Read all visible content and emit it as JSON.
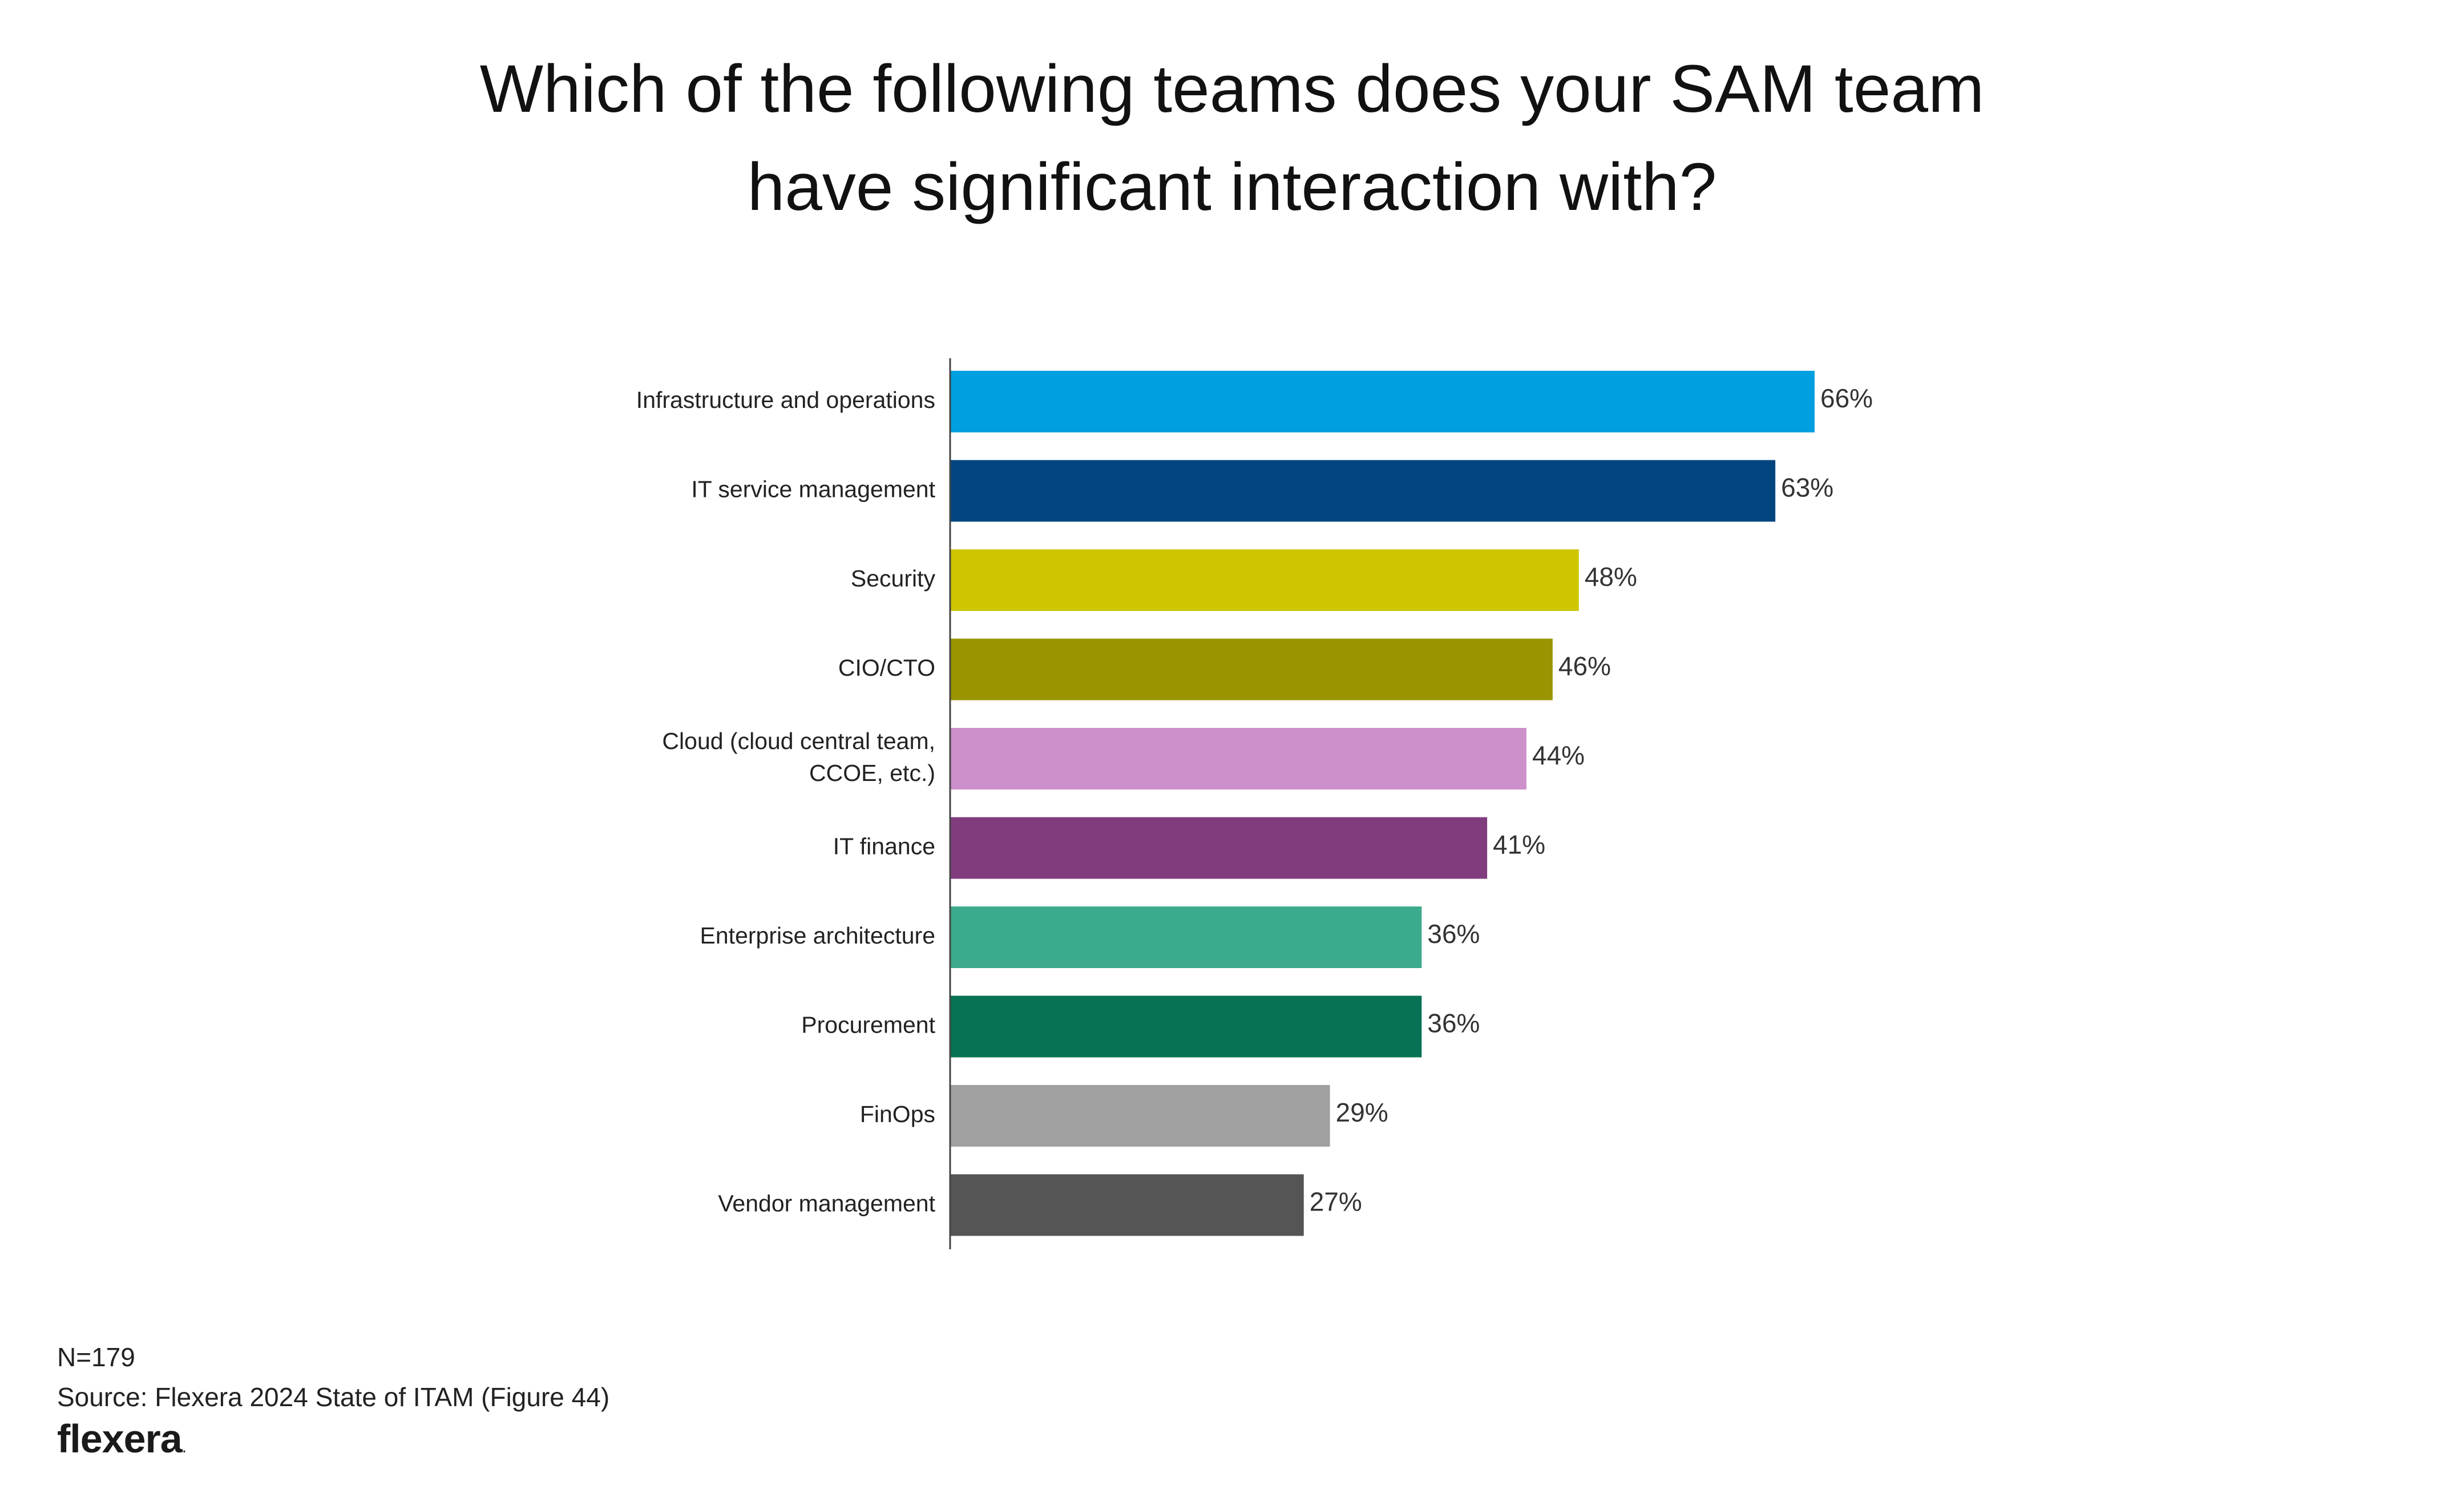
{
  "title_lines": [
    "Which of the following teams does your SAM team",
    "have significant interaction with?"
  ],
  "footer": {
    "n": "N=179",
    "source": "Source: Flexera 2024 State of ITAM (Figure 44)",
    "brand": "flexera",
    "brand_dot": "."
  },
  "chart_data": {
    "type": "bar",
    "orientation": "horizontal",
    "title": "Which of the following teams does your SAM team have significant interaction with?",
    "categories": [
      [
        "Infrastructure and operations"
      ],
      [
        "IT service management"
      ],
      [
        "Security"
      ],
      [
        "CIO/CTO"
      ],
      [
        "Cloud (cloud central team,",
        "CCOE, etc.)"
      ],
      [
        "IT finance"
      ],
      [
        "Enterprise architecture"
      ],
      [
        "Procurement"
      ],
      [
        "FinOps"
      ],
      [
        "Vendor management"
      ]
    ],
    "values": [
      66,
      63,
      48,
      46,
      44,
      41,
      36,
      36,
      29,
      27
    ],
    "value_labels": [
      "66%",
      "63%",
      "48%",
      "46%",
      "44%",
      "41%",
      "36%",
      "36%",
      "29%",
      "27%"
    ],
    "colors": [
      "#009fdf",
      "#004580",
      "#cdc600",
      "#999400",
      "#cd90ca",
      "#813c7e",
      "#3caa8c",
      "#087254",
      "#a0a0a0",
      "#555555"
    ],
    "unit": "%",
    "xlim": [
      0,
      66
    ],
    "grid": false,
    "legend": "none",
    "xlabel": "",
    "ylabel": ""
  }
}
